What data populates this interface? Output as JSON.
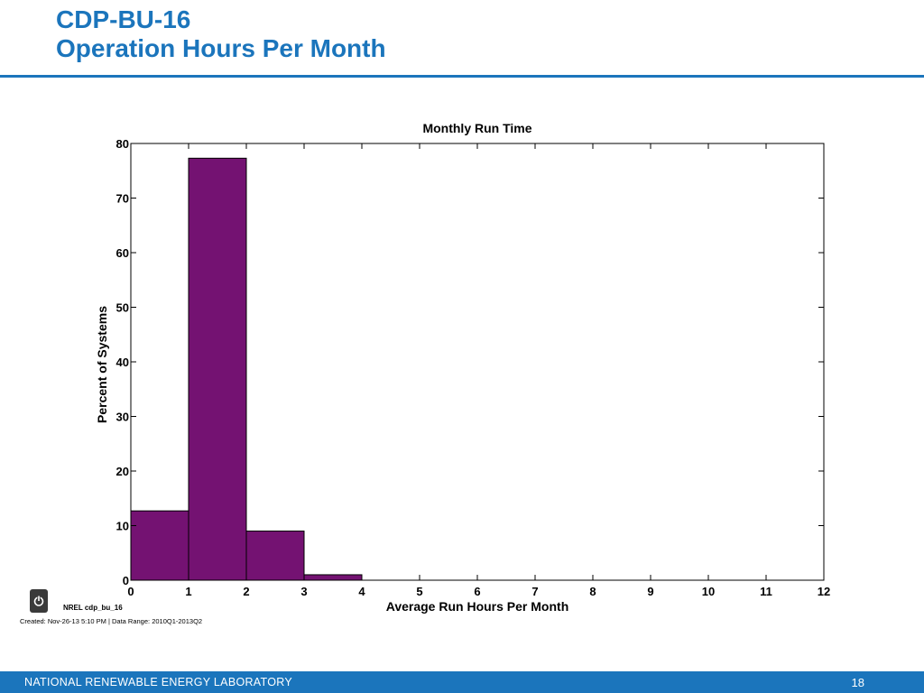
{
  "slide": {
    "title_line1": "CDP-BU-16",
    "title_line2": "Operation Hours Per Month",
    "nrel_label": "NREL cdp_bu_16",
    "created_label": "Created: Nov-26-13  5:10 PM | Data Range: 2010Q1-2013Q2",
    "footer_org": "NATIONAL RENEWABLE ENERGY LABORATORY",
    "page_number": "18",
    "accent_color": "#1b75bc",
    "badge_icon": "power-icon"
  },
  "chart_data": {
    "type": "bar",
    "title": "Monthly Run Time",
    "xlabel": "Average Run Hours Per Month",
    "ylabel": "Percent of Systems",
    "bins": [
      {
        "start": 0,
        "end": 1,
        "value": 12.7
      },
      {
        "start": 1,
        "end": 2,
        "value": 77.3
      },
      {
        "start": 2,
        "end": 3,
        "value": 9.0
      },
      {
        "start": 3,
        "end": 4,
        "value": 1.0
      }
    ],
    "xlim": [
      0,
      12
    ],
    "ylim": [
      0,
      80
    ],
    "xticks": [
      "0",
      "1",
      "2",
      "3",
      "4",
      "5",
      "6",
      "7",
      "8",
      "9",
      "10",
      "11",
      "12"
    ],
    "yticks": [
      "0",
      "10",
      "20",
      "30",
      "40",
      "50",
      "60",
      "70",
      "80"
    ],
    "bar_color": "#741272",
    "grid": false
  }
}
